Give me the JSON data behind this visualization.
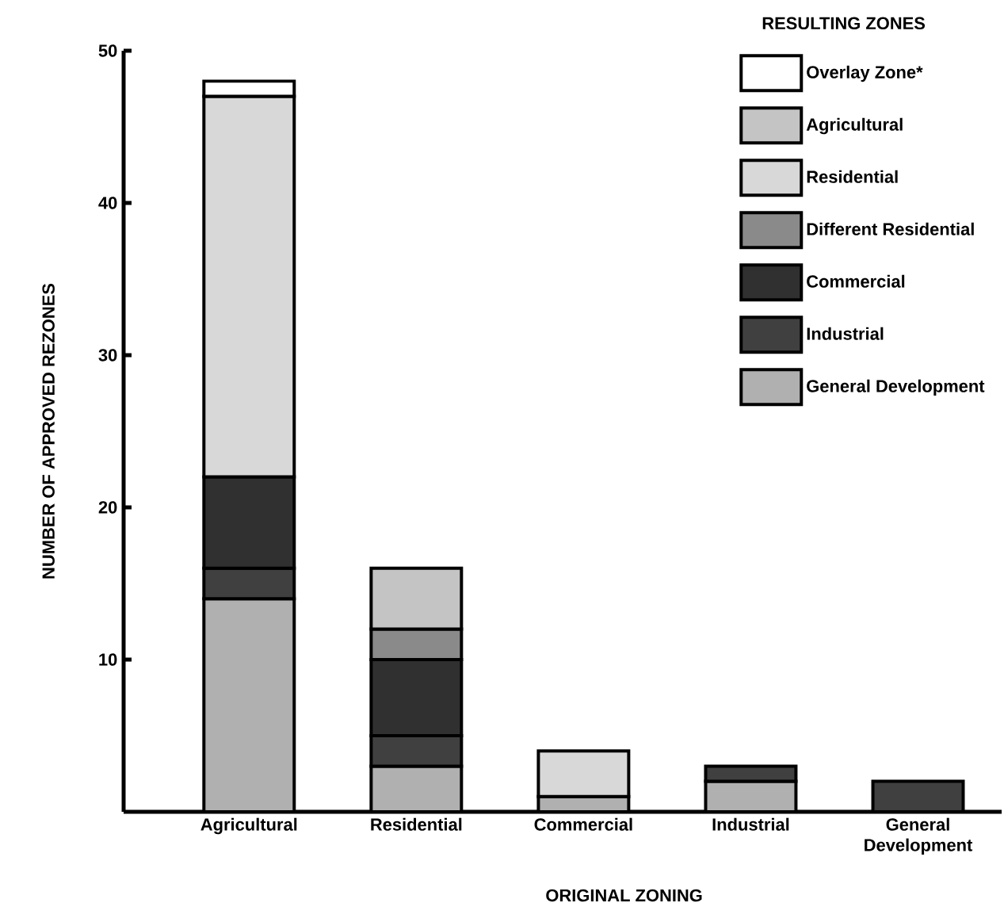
{
  "chart_data": {
    "type": "bar",
    "stacked": true,
    "xlabel": "ORIGINAL ZONING",
    "ylabel": "NUMBER OF APPROVED REZONES",
    "legend_title": "RESULTING ZONES",
    "categories": [
      "Agricultural",
      "Residential",
      "Commercial",
      "Industrial",
      "General Development"
    ],
    "series": [
      {
        "name": "General Development",
        "color": "#b0b0b0",
        "values": [
          14,
          3,
          1,
          2,
          null
        ]
      },
      {
        "name": "Industrial",
        "color": "#404040",
        "values": [
          2,
          2,
          null,
          1,
          2
        ]
      },
      {
        "name": "Commercial",
        "color": "#303030",
        "values": [
          6,
          5,
          null,
          null,
          null
        ]
      },
      {
        "name": "Different Residential",
        "color": "#8a8a8a",
        "values": [
          null,
          2,
          null,
          null,
          null
        ]
      },
      {
        "name": "Residential",
        "color": "#d8d8d8",
        "values": [
          25,
          null,
          3,
          null,
          null
        ]
      },
      {
        "name": "Agricultural",
        "color": "#c4c4c4",
        "values": [
          null,
          4,
          null,
          null,
          null
        ]
      },
      {
        "name": "Overlay Zone*",
        "color": "#ffffff",
        "values": [
          1,
          null,
          null,
          null,
          null
        ]
      }
    ],
    "ylim": [
      0,
      50
    ],
    "yticks": [
      10,
      20,
      30,
      40,
      50
    ],
    "legend": "top right"
  }
}
